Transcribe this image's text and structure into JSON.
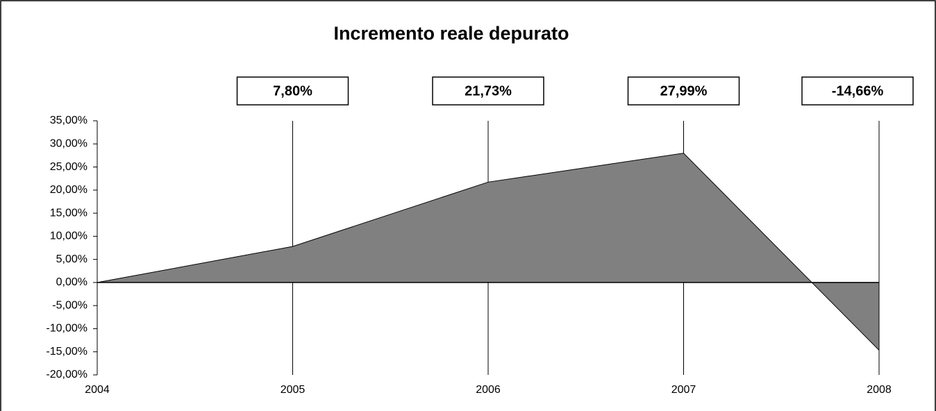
{
  "chart_data": {
    "type": "area",
    "title": "Incremento reale depurato",
    "categories": [
      "2004",
      "2005",
      "2006",
      "2007",
      "2008"
    ],
    "values": [
      0,
      7.8,
      21.73,
      27.99,
      -14.66
    ],
    "value_labels": [
      null,
      "7,80%",
      "21,73%",
      "27,99%",
      "-14,66%"
    ],
    "color": "#808080",
    "ylim": [
      -20,
      35
    ],
    "yticks": [
      {
        "value": 35,
        "label": "35,00%"
      },
      {
        "value": 30,
        "label": "30,00%"
      },
      {
        "value": 25,
        "label": "25,00%"
      },
      {
        "value": 20,
        "label": "20,00%"
      },
      {
        "value": 15,
        "label": "15,00%"
      },
      {
        "value": 10,
        "label": "10,00%"
      },
      {
        "value": 5,
        "label": "5,00%"
      },
      {
        "value": 0,
        "label": "0,00%"
      },
      {
        "value": -5,
        "label": "-5,00%"
      },
      {
        "value": -10,
        "label": "-10,00%"
      },
      {
        "value": -15,
        "label": "-15,00%"
      },
      {
        "value": -20,
        "label": "-20,00%"
      }
    ]
  }
}
